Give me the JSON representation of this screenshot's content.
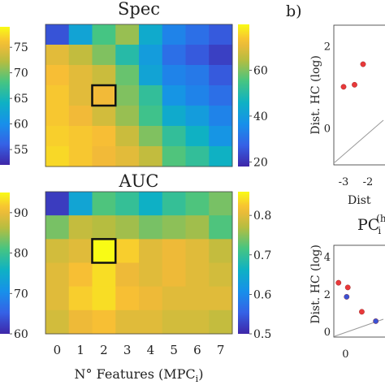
{
  "figure": {
    "panel_b_label": "b)"
  },
  "chart_data": [
    {
      "id": "spec",
      "type": "heatmap",
      "title": "Spec",
      "xlabel": "",
      "ylabel": "",
      "columns": [
        "0",
        "1",
        "2",
        "3",
        "4",
        "5",
        "6",
        "7"
      ],
      "colorbar_range": [
        18,
        80
      ],
      "colorbar_ticks": [
        20,
        40,
        60
      ],
      "highlight": {
        "row": 3,
        "col": 2
      },
      "grid": [
        [
          25,
          42,
          55,
          62,
          44,
          34,
          30,
          26
        ],
        [
          70,
          66,
          60,
          50,
          40,
          30,
          26,
          22
        ],
        [
          73,
          70,
          67,
          58,
          42,
          34,
          32,
          26
        ],
        [
          74,
          70,
          72,
          60,
          52,
          38,
          34,
          30
        ],
        [
          74,
          72,
          68,
          62,
          54,
          44,
          40,
          34
        ],
        [
          75,
          74,
          73,
          67,
          60,
          52,
          46,
          38
        ],
        [
          76,
          74,
          72,
          70,
          66,
          56,
          52,
          46
        ]
      ]
    },
    {
      "id": "auc",
      "type": "heatmap",
      "title": "AUC",
      "xlabel": "N° Features (MPC",
      "xlabel_sub": "i",
      "xlabel_close": ")",
      "ylabel": "",
      "columns": [
        "0",
        "1",
        "2",
        "3",
        "4",
        "5",
        "6",
        "7"
      ],
      "colorbar_range": [
        0.5,
        0.86
      ],
      "colorbar_ticks": [
        0.5,
        0.6,
        0.7,
        0.8
      ],
      "highlight": {
        "row": 2,
        "col": 2
      },
      "grid": [
        [
          0.52,
          0.64,
          0.72,
          0.7,
          0.66,
          0.7,
          0.72,
          0.74
        ],
        [
          0.74,
          0.78,
          0.77,
          0.76,
          0.74,
          0.75,
          0.76,
          0.72
        ],
        [
          0.79,
          0.8,
          0.86,
          0.83,
          0.8,
          0.81,
          0.8,
          0.78
        ],
        [
          0.8,
          0.82,
          0.84,
          0.81,
          0.8,
          0.81,
          0.8,
          0.79
        ],
        [
          0.8,
          0.83,
          0.84,
          0.82,
          0.81,
          0.8,
          0.8,
          0.8
        ],
        [
          0.79,
          0.81,
          0.82,
          0.8,
          0.8,
          0.79,
          0.79,
          0.78
        ]
      ]
    },
    {
      "id": "left-colorbar-top",
      "type": "heatmap",
      "title": "",
      "colorbar_ticks": [
        55,
        60,
        65,
        70,
        75
      ],
      "colorbar_range": [
        52,
        79
      ]
    },
    {
      "id": "left-colorbar-bottom",
      "type": "heatmap",
      "title": "",
      "colorbar_ticks": [
        60,
        70,
        80,
        90
      ],
      "colorbar_range": [
        60,
        95
      ]
    },
    {
      "id": "scatter-top",
      "type": "scatter",
      "title": "",
      "xlabel": "Dist",
      "ylabel": "Dist. HC (log)",
      "xticks": [
        "-3",
        "-2"
      ],
      "yticks": [
        "0",
        "2"
      ],
      "points": [
        {
          "x": -3.0,
          "y": 1.0,
          "group": "red"
        },
        {
          "x": -2.55,
          "y": 1.05,
          "group": "red"
        },
        {
          "x": -2.2,
          "y": 1.55,
          "group": "red"
        }
      ]
    },
    {
      "id": "scatter-bottom",
      "type": "scatter",
      "title": "PC",
      "title_sub": "i",
      "title_sup": "(h",
      "xlabel": "",
      "ylabel": "Dist. HC (log)",
      "xticks": [
        "0"
      ],
      "yticks": [
        "0",
        "2",
        "4"
      ],
      "points": [
        {
          "x": -0.3,
          "y": 2.6,
          "group": "red"
        },
        {
          "x": 0.1,
          "y": 2.35,
          "group": "red"
        },
        {
          "x": 0.05,
          "y": 1.85,
          "group": "blue"
        },
        {
          "x": 0.7,
          "y": 1.05,
          "group": "red"
        },
        {
          "x": 1.3,
          "y": 0.55,
          "group": "blue"
        }
      ]
    }
  ]
}
